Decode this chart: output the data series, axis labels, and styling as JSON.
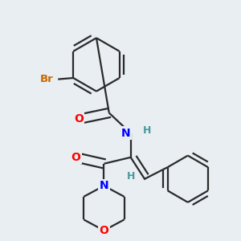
{
  "background_color": "#e8eef2",
  "bond_color": "#2a2a2a",
  "atom_colors": {
    "O": "#ff0000",
    "N": "#0000ff",
    "Br": "#cc6600",
    "H": "#4a9a9a",
    "C": "#2a2a2a"
  },
  "lw": 1.6,
  "dbo": 0.018
}
